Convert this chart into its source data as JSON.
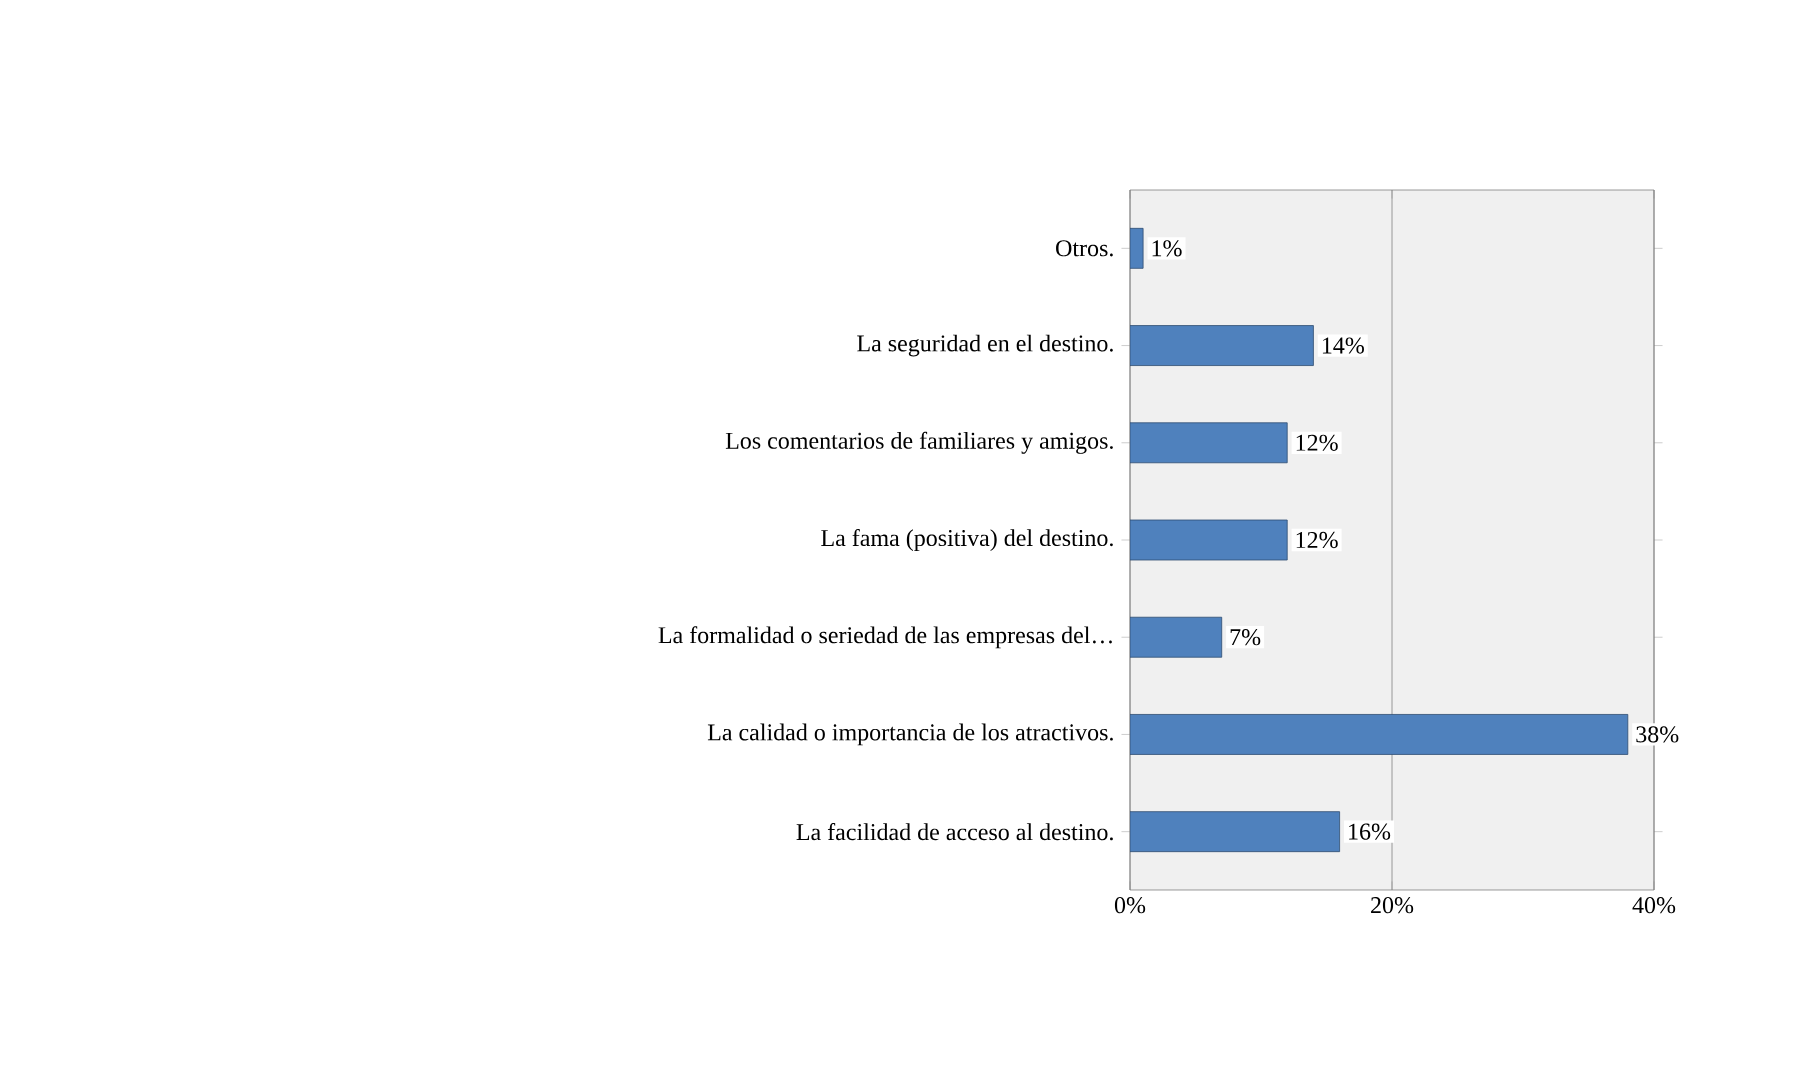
{
  "chart_data": {
    "type": "bar",
    "orientation": "horizontal",
    "categories": [
      "Otros.",
      "La seguridad en el destino.",
      "Los comentarios de familiares y amigos.",
      "La fama (positiva) del destino.",
      "La formalidad o seriedad de las empresas del…",
      "La calidad o importancia de los atractivos.",
      "La facilidad de acceso al destino."
    ],
    "values": [
      1,
      14,
      12,
      12,
      7,
      38,
      16
    ],
    "value_labels": [
      "1%",
      "14%",
      "12%",
      "12%",
      "7%",
      "38%",
      "16%"
    ],
    "color": "#4f81bd",
    "xlim": [
      0,
      40
    ],
    "xticks": [
      {
        "value": 0,
        "label": "0%"
      },
      {
        "value": 20,
        "label": "20%"
      },
      {
        "value": 40,
        "label": "40%"
      }
    ],
    "grid": "x"
  }
}
